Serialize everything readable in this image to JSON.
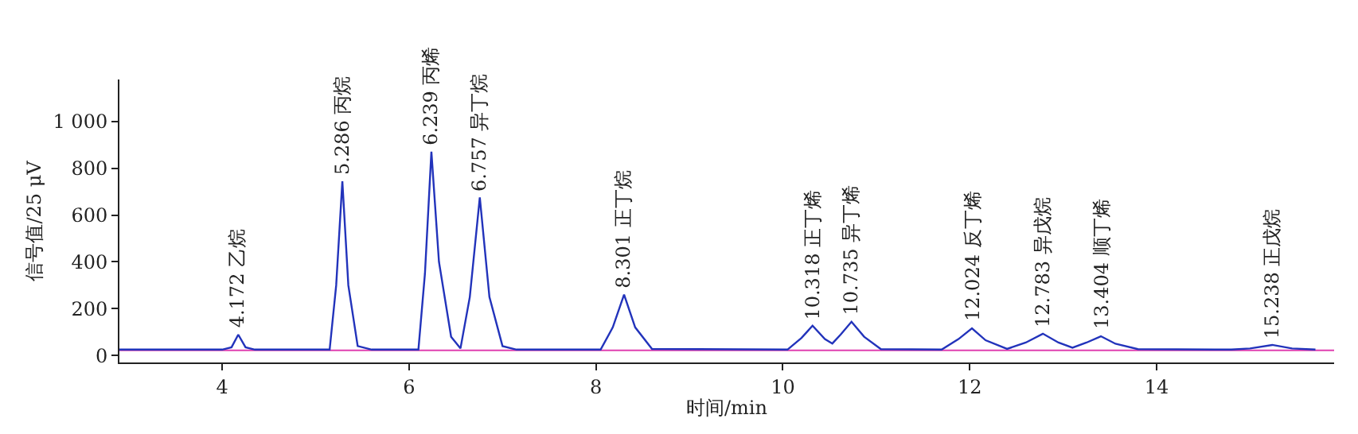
{
  "chart_data": {
    "type": "line",
    "xlabel": "时间/min",
    "ylabel": "信号值/25 μV",
    "x": [
      2.9,
      4.0,
      4.1,
      4.172,
      4.25,
      4.35,
      5.15,
      5.22,
      5.286,
      5.35,
      5.45,
      5.6,
      6.1,
      6.17,
      6.239,
      6.32,
      6.45,
      6.55,
      6.65,
      6.757,
      6.86,
      7.0,
      7.15,
      8.05,
      8.18,
      8.301,
      8.42,
      8.6,
      10.05,
      10.2,
      10.318,
      10.45,
      10.53,
      10.62,
      10.735,
      10.87,
      11.05,
      11.7,
      11.88,
      12.024,
      12.17,
      12.4,
      12.6,
      12.783,
      12.95,
      13.1,
      13.25,
      13.404,
      13.56,
      13.8,
      14.8,
      15.0,
      15.238,
      15.45,
      15.7
    ],
    "series": [
      {
        "color": "#2233bb",
        "values": [
          25,
          25,
          35,
          89,
          35,
          25,
          25,
          300,
          745,
          300,
          40,
          25,
          25,
          350,
          871,
          400,
          80,
          30,
          250,
          676,
          250,
          40,
          25,
          25,
          120,
          260,
          120,
          28,
          25,
          75,
          127,
          70,
          51,
          90,
          144,
          80,
          27,
          25,
          70,
          116,
          65,
          28,
          55,
          93,
          55,
          33,
          55,
          82,
          50,
          27,
          25,
          30,
          45,
          30,
          25
        ]
      }
    ],
    "xlim": [
      2.9,
      15.9
    ],
    "ylim": [
      -30,
      1180
    ],
    "xticks": [
      4,
      6,
      8,
      10,
      12,
      14
    ],
    "yticks": [
      0,
      200,
      400,
      600,
      800,
      {
        "value": 1000,
        "label": "1 000"
      }
    ],
    "grid": false,
    "marker": "none",
    "line_style": "solid",
    "ref_lines": [
      {
        "axis": "y",
        "value": 22,
        "color": "#e040b0"
      }
    ],
    "annotations": [
      {
        "text": "4.172 乙烷",
        "x": 4.172,
        "y": 89
      },
      {
        "text": "5.286 丙烷",
        "x": 5.286,
        "y": 745
      },
      {
        "text": "6.239 丙烯",
        "x": 6.239,
        "y": 871
      },
      {
        "text": "6.757 异丁烷",
        "x": 6.757,
        "y": 676
      },
      {
        "text": "8.301 正丁烷",
        "x": 8.301,
        "y": 260
      },
      {
        "text": "10.318 正丁烯",
        "x": 10.318,
        "y": 127
      },
      {
        "text": "10.735 异丁烯",
        "x": 10.735,
        "y": 144
      },
      {
        "text": "12.024 反丁烯",
        "x": 12.024,
        "y": 116
      },
      {
        "text": "12.783 异戊烷",
        "x": 12.783,
        "y": 93
      },
      {
        "text": "13.404 顺丁烯",
        "x": 13.404,
        "y": 82
      },
      {
        "text": "15.238 正戊烷",
        "x": 15.238,
        "y": 45
      }
    ]
  }
}
